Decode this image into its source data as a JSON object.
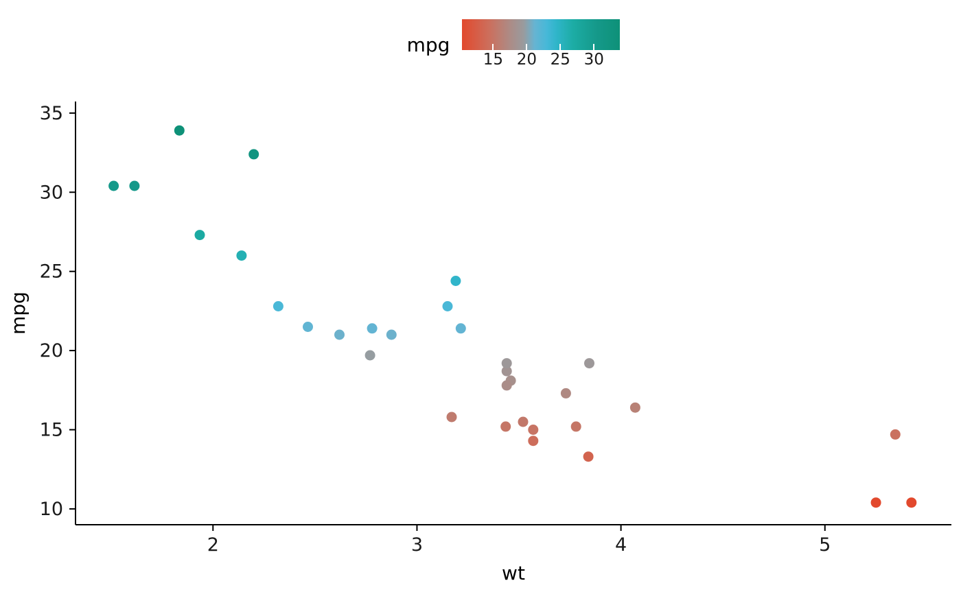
{
  "chart_data": {
    "type": "scatter",
    "title": "",
    "xlabel": "wt",
    "ylabel": "mpg",
    "x_ticks": [
      2,
      3,
      4,
      5
    ],
    "y_ticks": [
      10,
      15,
      20,
      25,
      30,
      35
    ],
    "xlim": [
      1.326,
      5.62
    ],
    "ylim": [
      9.0,
      35.73
    ],
    "grid": false,
    "legend": {
      "title": "mpg",
      "position": "top",
      "ticks": [
        15,
        20,
        25,
        30
      ],
      "limits": [
        10.4,
        33.9
      ]
    },
    "color_stops": [
      {
        "value": 10.4,
        "color": "#e2492d"
      },
      {
        "value": 14.5,
        "color": "#cc6f5d"
      },
      {
        "value": 17.5,
        "color": "#ad8b85"
      },
      {
        "value": 19.6,
        "color": "#999b9e"
      },
      {
        "value": 21.2,
        "color": "#66b4d2"
      },
      {
        "value": 23.0,
        "color": "#47b8d8"
      },
      {
        "value": 24.5,
        "color": "#2fb5c9"
      },
      {
        "value": 27.0,
        "color": "#1caca4"
      },
      {
        "value": 30.4,
        "color": "#15998a"
      },
      {
        "value": 33.9,
        "color": "#0e9178"
      }
    ],
    "points": [
      {
        "wt": 2.62,
        "mpg": 21.0
      },
      {
        "wt": 2.875,
        "mpg": 21.0
      },
      {
        "wt": 2.32,
        "mpg": 22.8
      },
      {
        "wt": 3.215,
        "mpg": 21.4
      },
      {
        "wt": 3.44,
        "mpg": 18.7
      },
      {
        "wt": 3.46,
        "mpg": 18.1
      },
      {
        "wt": 3.57,
        "mpg": 14.3
      },
      {
        "wt": 3.19,
        "mpg": 24.4
      },
      {
        "wt": 3.15,
        "mpg": 22.8
      },
      {
        "wt": 3.44,
        "mpg": 19.2
      },
      {
        "wt": 3.44,
        "mpg": 17.8
      },
      {
        "wt": 4.07,
        "mpg": 16.4
      },
      {
        "wt": 3.73,
        "mpg": 17.3
      },
      {
        "wt": 3.78,
        "mpg": 15.2
      },
      {
        "wt": 5.25,
        "mpg": 10.4
      },
      {
        "wt": 5.424,
        "mpg": 10.4
      },
      {
        "wt": 5.345,
        "mpg": 14.7
      },
      {
        "wt": 2.2,
        "mpg": 32.4
      },
      {
        "wt": 1.615,
        "mpg": 30.4
      },
      {
        "wt": 1.835,
        "mpg": 33.9
      },
      {
        "wt": 2.465,
        "mpg": 21.5
      },
      {
        "wt": 3.52,
        "mpg": 15.5
      },
      {
        "wt": 3.435,
        "mpg": 15.2
      },
      {
        "wt": 3.84,
        "mpg": 13.3
      },
      {
        "wt": 3.845,
        "mpg": 19.2
      },
      {
        "wt": 1.935,
        "mpg": 27.3
      },
      {
        "wt": 2.14,
        "mpg": 26.0
      },
      {
        "wt": 1.513,
        "mpg": 30.4
      },
      {
        "wt": 3.17,
        "mpg": 15.8
      },
      {
        "wt": 2.77,
        "mpg": 19.7
      },
      {
        "wt": 3.57,
        "mpg": 15.0
      },
      {
        "wt": 2.78,
        "mpg": 21.4
      }
    ],
    "point_radius": 7.5,
    "axis_color": "#000000",
    "tick_text_color": "#1a1a1a"
  }
}
